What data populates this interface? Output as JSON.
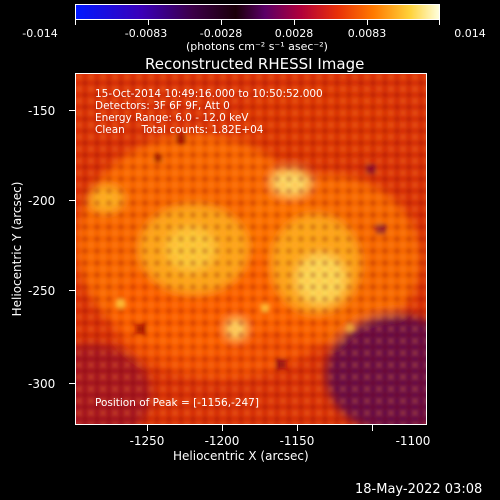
{
  "colorbar": {
    "ticks": [
      "-0.014",
      "-0.0083",
      "-0.0028",
      "0.0028",
      "0.0083",
      "0.014"
    ],
    "unit_label": "(photons cm⁻² s⁻¹ asec⁻²)"
  },
  "title": "Reconstructed RHESSI Image",
  "info": {
    "time_range": "15-Oct-2014 10:49:16.000 to 10:50:52.000",
    "detectors": "Detectors: 3F 6F 9F, Att 0",
    "energy": "Energy Range: 6.0 - 12.0 keV",
    "clean": "Clean     Total counts: 1.82E+04",
    "peak": "Position of Peak = [-1156,-247]"
  },
  "axes": {
    "xlabel": "Heliocentric X (arcsec)",
    "ylabel": "Heliocentric Y (arcsec)",
    "xticks": [
      "-1250",
      "-1200",
      "-1150",
      "-1100"
    ],
    "yticks": [
      "-150",
      "-200",
      "-250",
      "-300"
    ]
  },
  "footer": "18-May-2022 03:08",
  "colors": {
    "background": "#000000",
    "hot": "#ffd23a",
    "dim": "#6a1080"
  }
}
